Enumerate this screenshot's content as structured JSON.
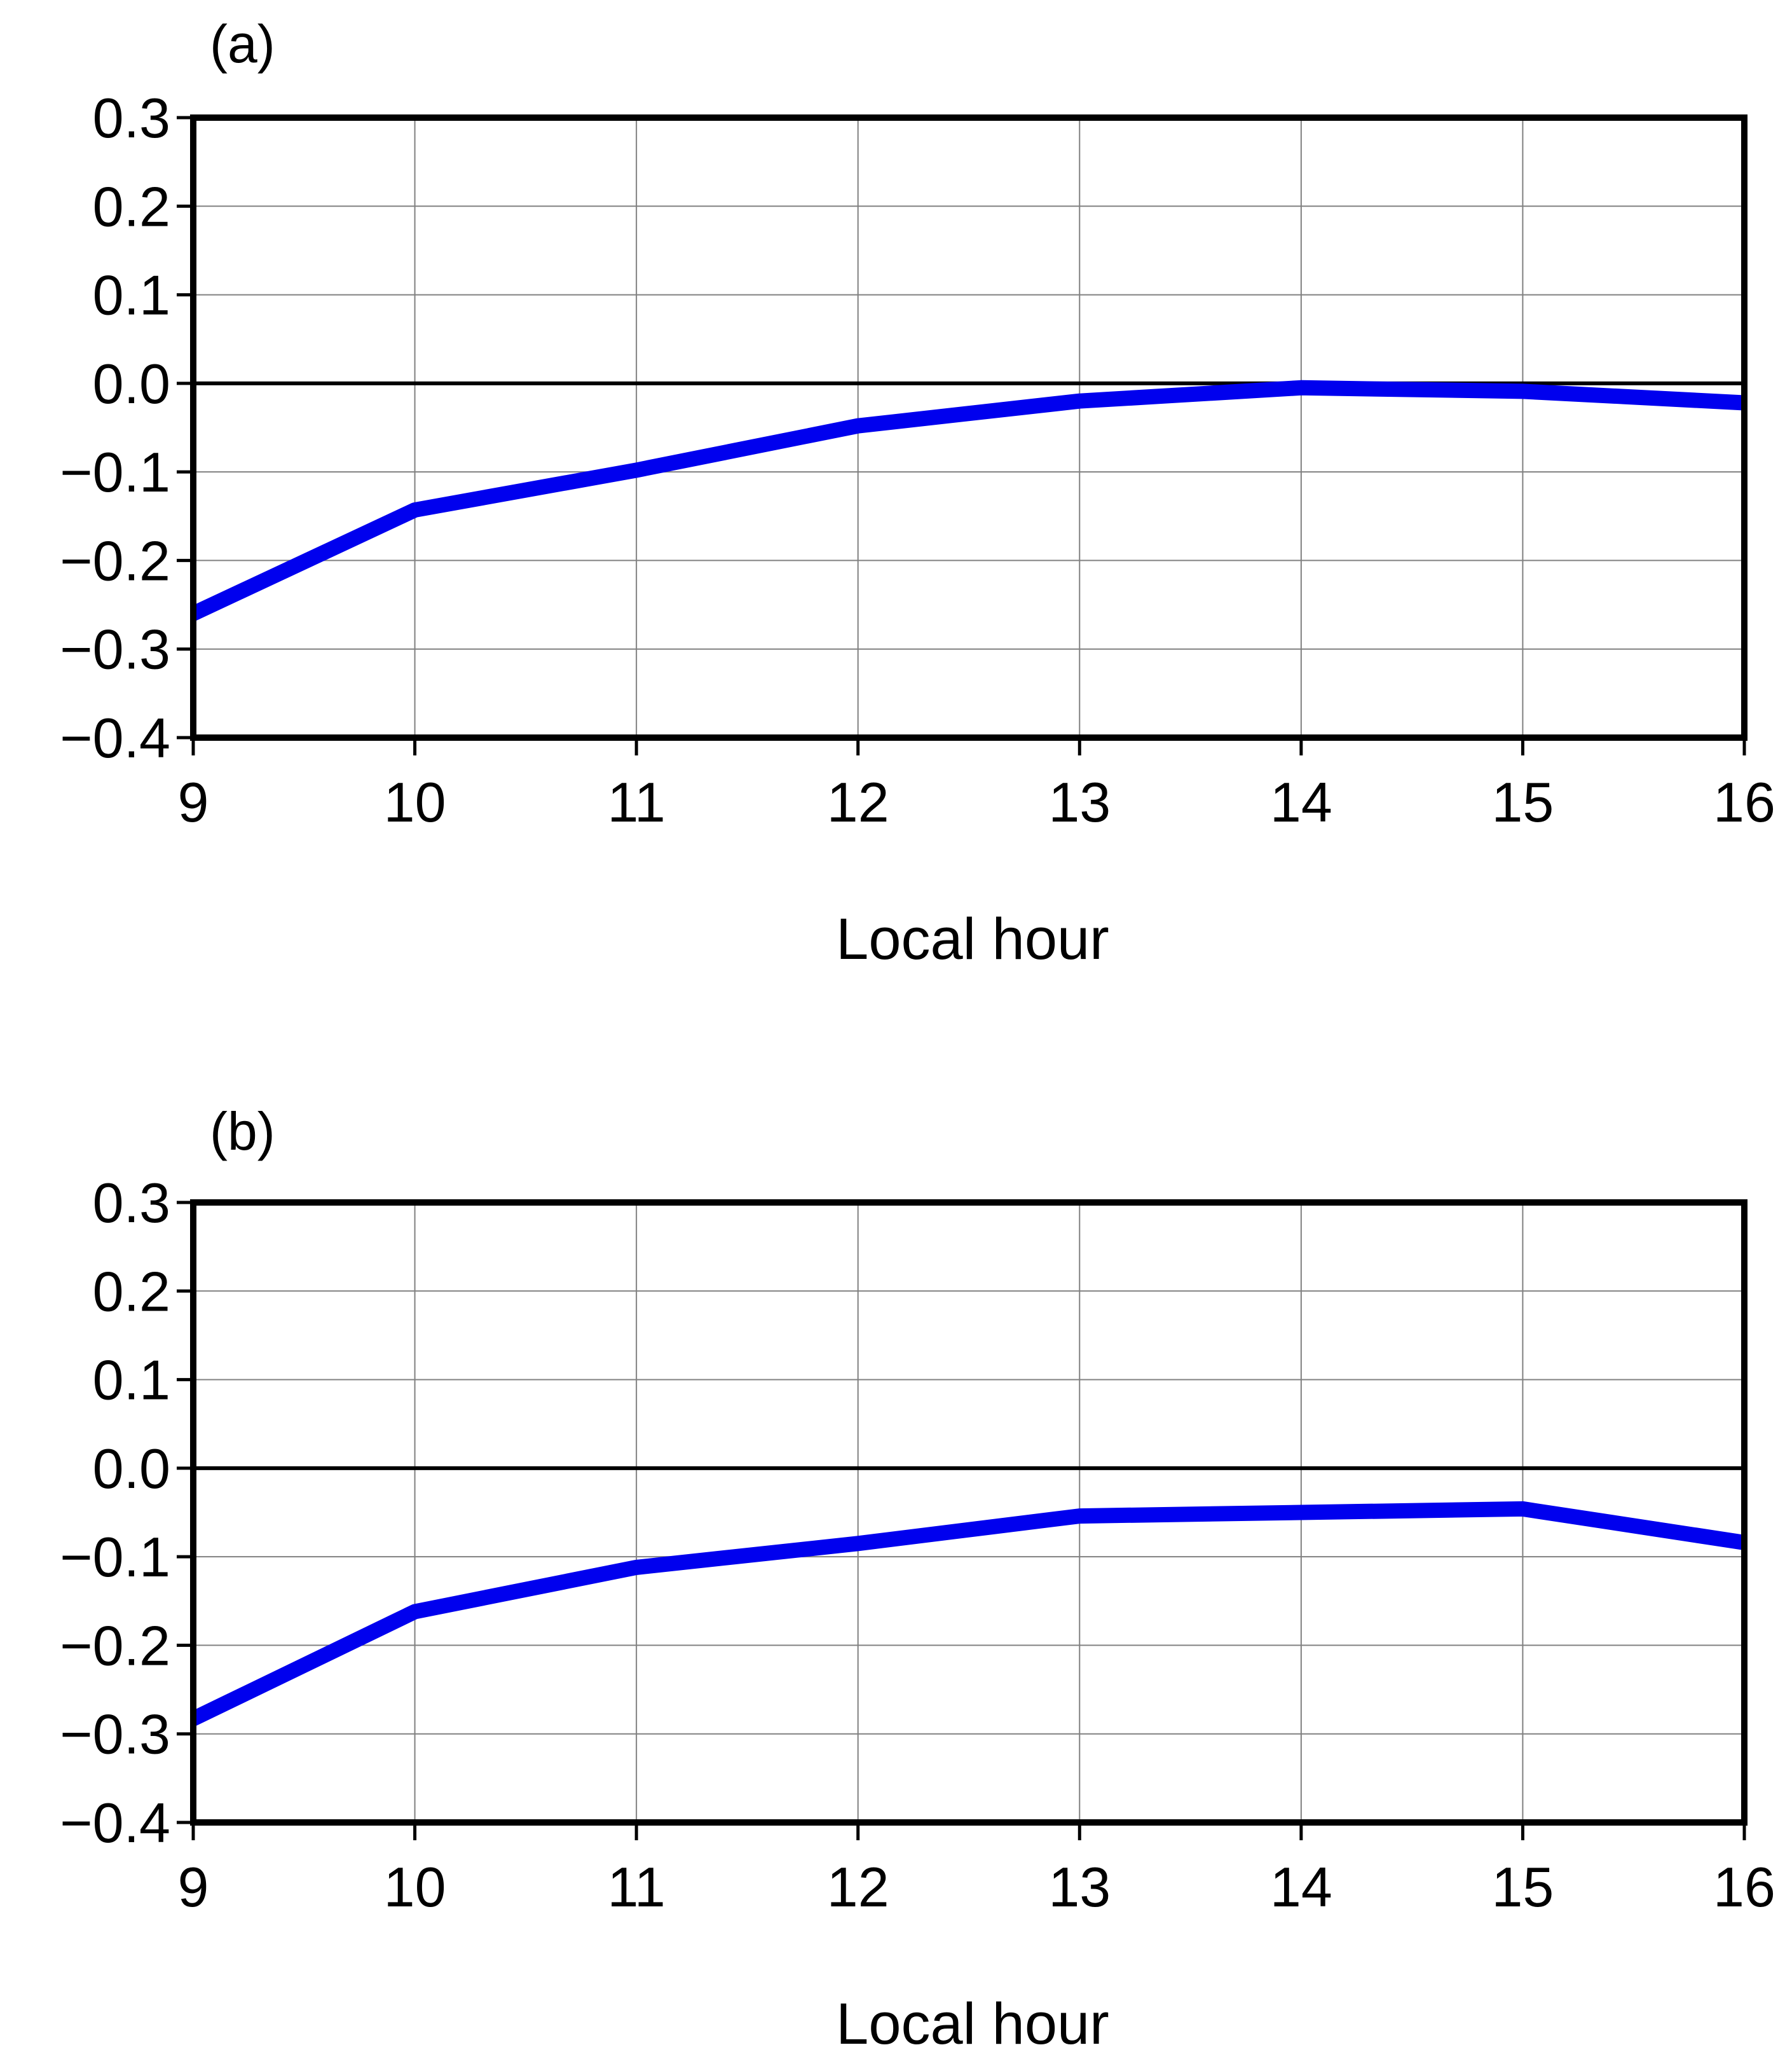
{
  "colors": {
    "line": "#0000ee",
    "frame": "#000000",
    "grid": "#808080",
    "zero_line": "#000000",
    "background": "#ffffff"
  },
  "chart_data": [
    {
      "type": "line",
      "panel_label": "(a)",
      "title": "",
      "xlabel": "Local hour",
      "ylabel": "",
      "x": [
        9,
        10,
        11,
        12,
        13,
        14,
        15,
        16
      ],
      "xticks": [
        "9",
        "10",
        "11",
        "12",
        "13",
        "14",
        "15",
        "16"
      ],
      "yticks": [
        "0.3",
        "0.2",
        "0.1",
        "0.0",
        "−0.1",
        "−0.2",
        "−0.3",
        "−0.4"
      ],
      "ytick_values": [
        0.3,
        0.2,
        0.1,
        0.0,
        -0.1,
        -0.2,
        -0.3,
        -0.4
      ],
      "xlim": [
        9,
        16
      ],
      "ylim": [
        -0.4,
        0.3
      ],
      "grid": true,
      "zero_line": true,
      "series": [
        {
          "values": [
            -0.26,
            -0.143,
            -0.098,
            -0.048,
            -0.02,
            -0.005,
            -0.009,
            -0.022
          ]
        }
      ]
    },
    {
      "type": "line",
      "panel_label": "(b)",
      "title": "",
      "xlabel": "Local hour",
      "ylabel": "",
      "x": [
        9,
        10,
        11,
        12,
        13,
        14,
        15,
        16
      ],
      "xticks": [
        "9",
        "10",
        "11",
        "12",
        "13",
        "14",
        "15",
        "16"
      ],
      "yticks": [
        "0.3",
        "0.2",
        "0.1",
        "0.0",
        "−0.1",
        "−0.2",
        "−0.3",
        "−0.4"
      ],
      "ytick_values": [
        0.3,
        0.2,
        0.1,
        0.0,
        -0.1,
        -0.2,
        -0.3,
        -0.4
      ],
      "xlim": [
        9,
        16
      ],
      "ylim": [
        -0.4,
        0.3
      ],
      "grid": true,
      "zero_line": true,
      "series": [
        {
          "values": [
            -0.283,
            -0.162,
            -0.112,
            -0.085,
            -0.054,
            -0.05,
            -0.046,
            -0.084
          ]
        }
      ]
    }
  ]
}
